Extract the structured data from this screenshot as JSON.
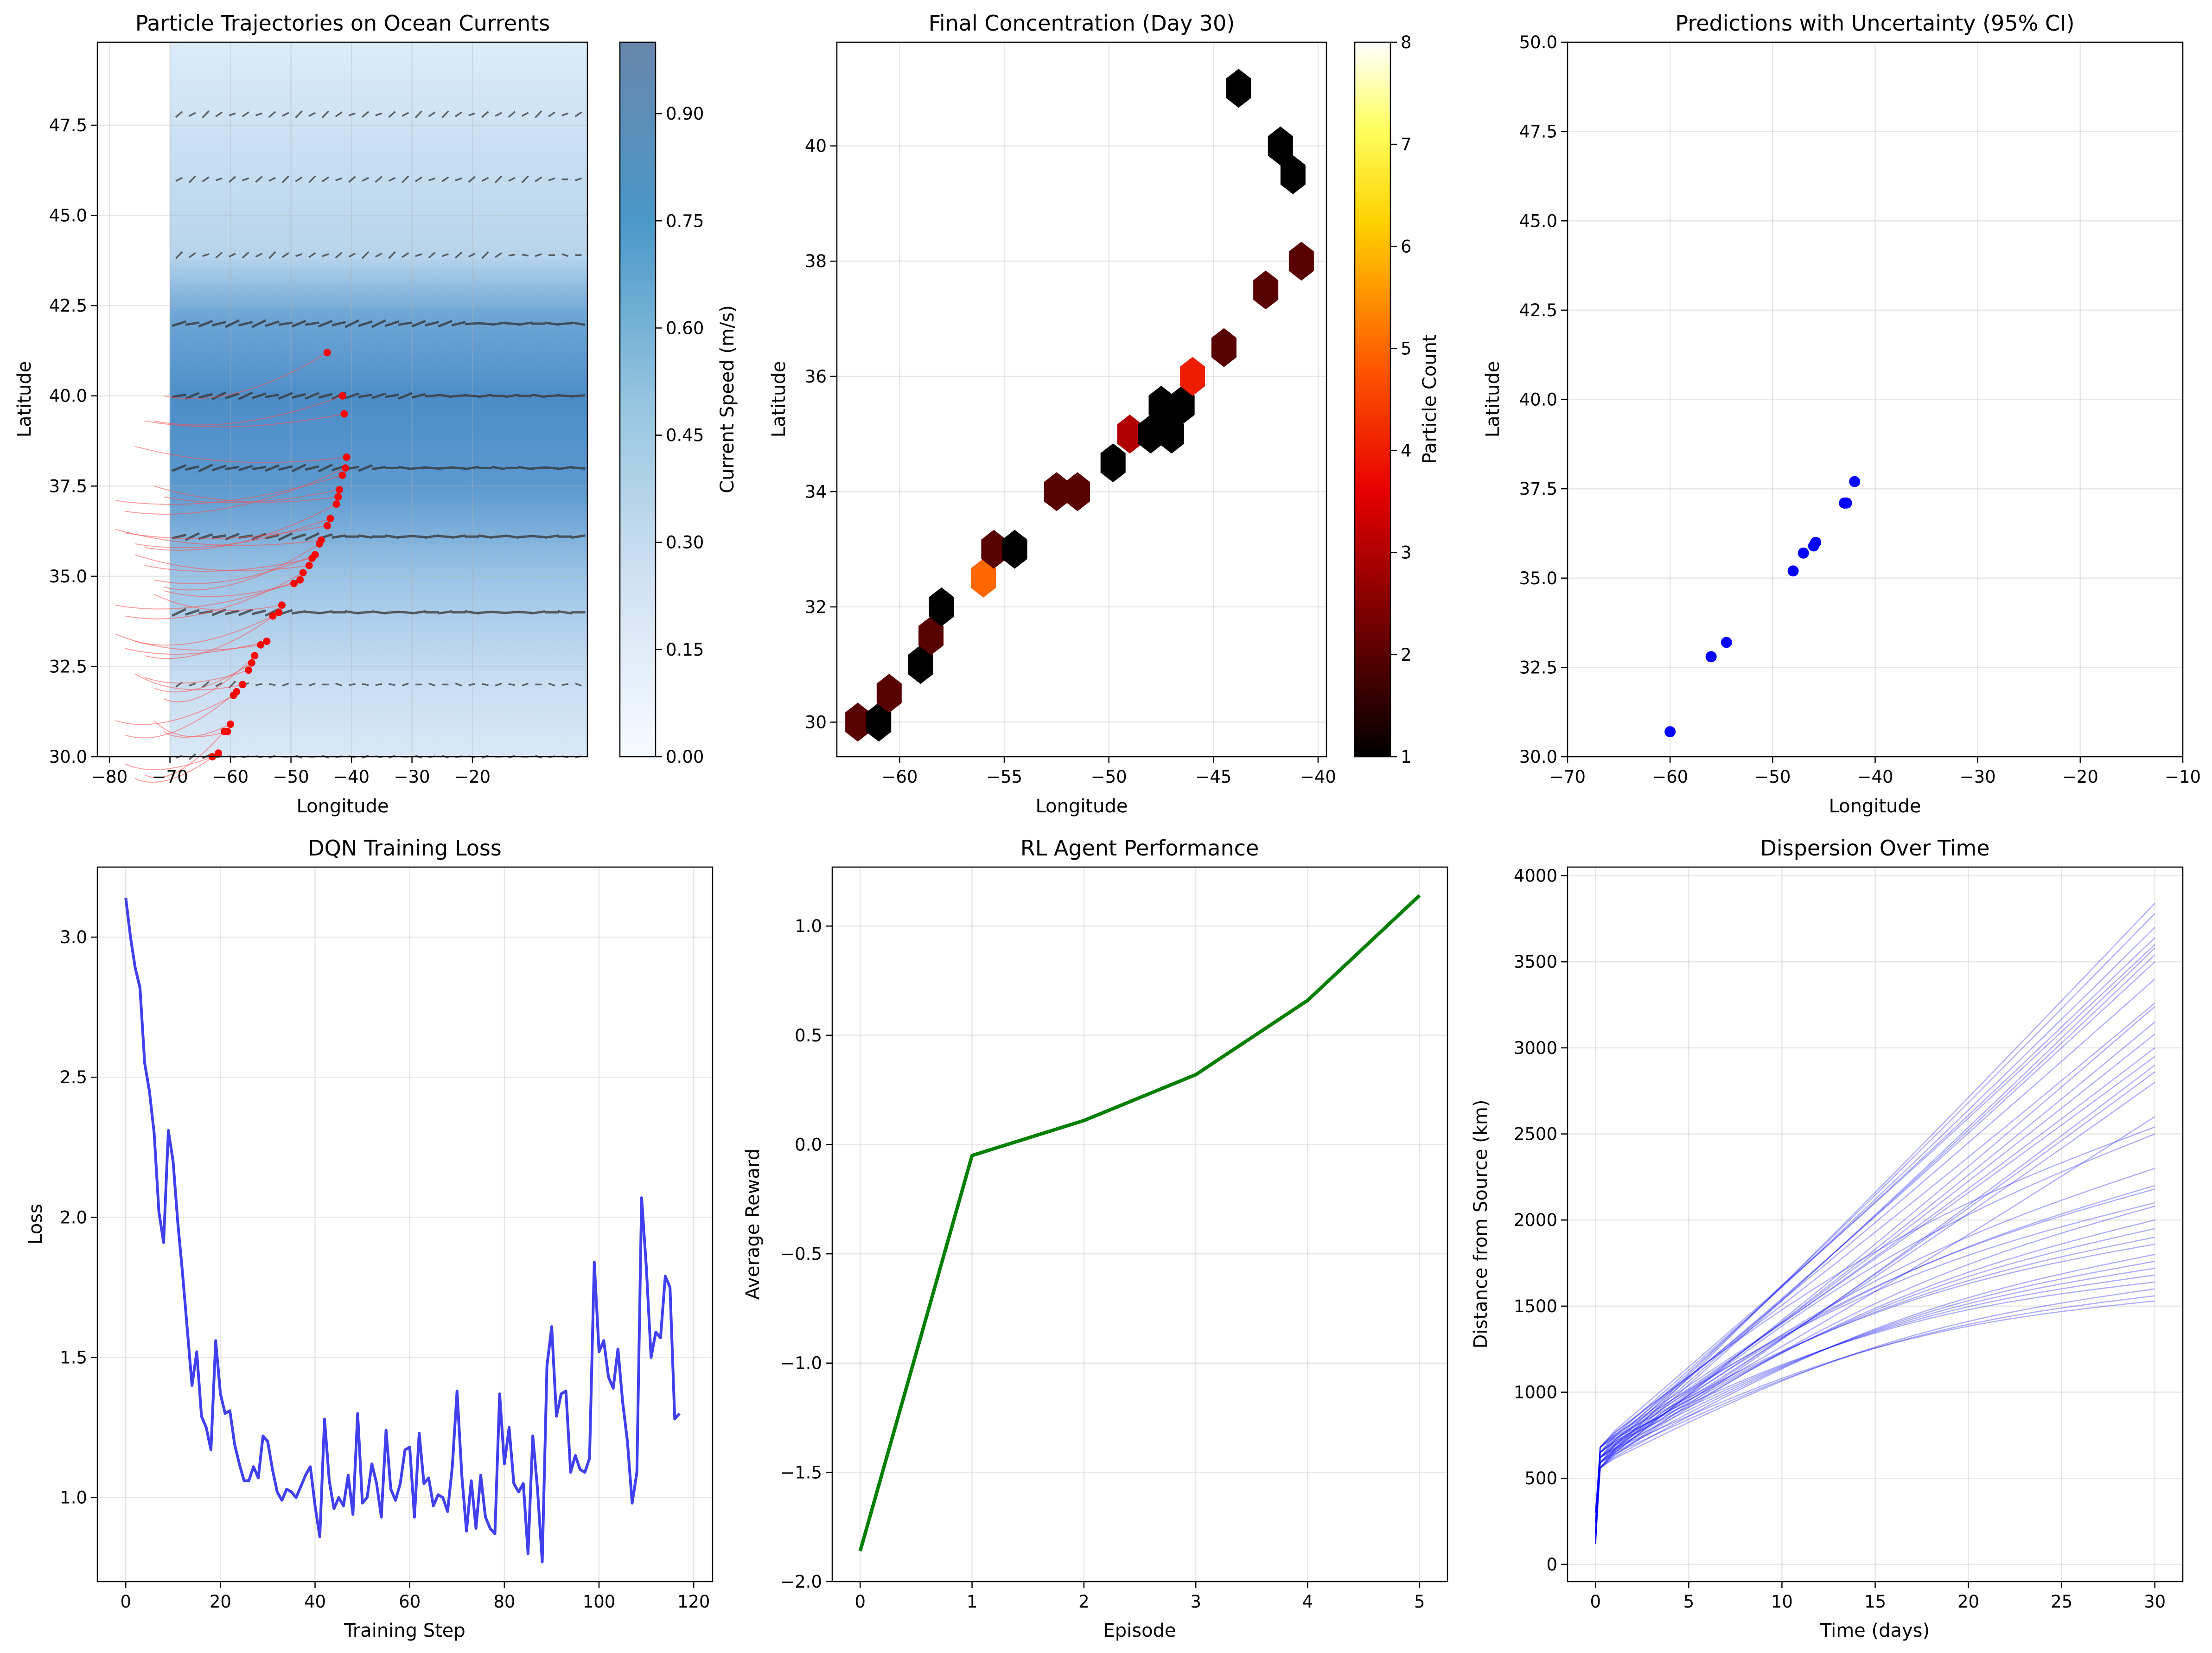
{
  "chart_data": [
    {
      "id": "trajectories",
      "type": "line",
      "title": "Particle Trajectories on Ocean Currents",
      "xlabel": "Longitude",
      "ylabel": "Latitude",
      "xlim": [
        -82,
        -1
      ],
      "ylim": [
        30,
        49.8
      ],
      "xticks": [
        -80,
        -70,
        -60,
        -50,
        -40,
        -30,
        -20
      ],
      "yticks": [
        30.0,
        32.5,
        35.0,
        37.5,
        40.0,
        42.5,
        45.0,
        47.5
      ],
      "grid": true,
      "field_xrange": [
        -70,
        -1
      ],
      "colorbar": {
        "label": "Current Speed (m/s)",
        "range": [
          0,
          1.0
        ],
        "ticks": [
          0.0,
          0.15,
          0.3,
          0.45,
          0.6,
          0.75,
          0.9
        ],
        "colormap": "Blues"
      },
      "quiver_rows_lat": [
        47.8,
        46.0,
        43.9,
        42.0,
        40.0,
        38.0,
        36.1,
        34.0,
        32.0,
        30.0
      ],
      "final_positions": [
        [
          -44.0,
          41.2
        ],
        [
          -41.5,
          40.0
        ],
        [
          -41.2,
          39.5
        ],
        [
          -40.8,
          38.3
        ],
        [
          -41.0,
          38.0
        ],
        [
          -41.5,
          37.8
        ],
        [
          -42.0,
          37.4
        ],
        [
          -42.2,
          37.2
        ],
        [
          -42.5,
          37.0
        ],
        [
          -43.5,
          36.6
        ],
        [
          -44.0,
          36.4
        ],
        [
          -45.0,
          36.0
        ],
        [
          -45.3,
          35.9
        ],
        [
          -46.0,
          35.6
        ],
        [
          -46.5,
          35.5
        ],
        [
          -47.0,
          35.3
        ],
        [
          -48.0,
          35.1
        ],
        [
          -48.5,
          34.9
        ],
        [
          -49.5,
          34.8
        ],
        [
          -51.5,
          34.2
        ],
        [
          -52.0,
          34.0
        ],
        [
          -53.0,
          33.9
        ],
        [
          -54.0,
          33.2
        ],
        [
          -55.0,
          33.1
        ],
        [
          -56.0,
          32.8
        ],
        [
          -56.5,
          32.6
        ],
        [
          -57.0,
          32.4
        ],
        [
          -58.0,
          32.0
        ],
        [
          -59.0,
          31.8
        ],
        [
          -59.5,
          31.7
        ],
        [
          -60.0,
          30.9
        ],
        [
          -60.5,
          30.7
        ],
        [
          -61.0,
          30.7
        ],
        [
          -62.0,
          30.1
        ],
        [
          -63.0,
          30.0
        ]
      ],
      "colors": {
        "trajectory": "#ff4d4d",
        "final": "#ff0000",
        "arrow": "#333333"
      }
    },
    {
      "id": "concentration",
      "type": "heatmap",
      "title": "Final Concentration (Day 30)",
      "xlabel": "Longitude",
      "ylabel": "Latitude",
      "xlim": [
        -63,
        -39.6
      ],
      "ylim": [
        29.4,
        41.8
      ],
      "xticks": [
        -60,
        -55,
        -50,
        -45,
        -40
      ],
      "yticks": [
        30,
        32,
        34,
        36,
        38,
        40
      ],
      "grid": true,
      "colorbar": {
        "label": "Particle Count",
        "range": [
          1,
          8
        ],
        "ticks": [
          1,
          2,
          3,
          4,
          5,
          6,
          7,
          8
        ],
        "colormap": "hot"
      },
      "cells": [
        {
          "lon": -62.0,
          "lat": 30.0,
          "count": 2
        },
        {
          "lon": -61.0,
          "lat": 30.0,
          "count": 1
        },
        {
          "lon": -60.5,
          "lat": 30.5,
          "count": 2
        },
        {
          "lon": -59.0,
          "lat": 31.0,
          "count": 1
        },
        {
          "lon": -58.5,
          "lat": 31.5,
          "count": 2
        },
        {
          "lon": -58.0,
          "lat": 32.0,
          "count": 1
        },
        {
          "lon": -56.0,
          "lat": 32.5,
          "count": 5
        },
        {
          "lon": -55.5,
          "lat": 33.0,
          "count": 2
        },
        {
          "lon": -54.5,
          "lat": 33.0,
          "count": 1
        },
        {
          "lon": -52.5,
          "lat": 34.0,
          "count": 2
        },
        {
          "lon": -51.5,
          "lat": 34.0,
          "count": 2
        },
        {
          "lon": -49.8,
          "lat": 34.5,
          "count": 1
        },
        {
          "lon": -49.0,
          "lat": 35.0,
          "count": 3
        },
        {
          "lon": -48.0,
          "lat": 35.0,
          "count": 1
        },
        {
          "lon": -47.0,
          "lat": 35.0,
          "count": 1
        },
        {
          "lon": -47.5,
          "lat": 35.5,
          "count": 1
        },
        {
          "lon": -46.5,
          "lat": 35.5,
          "count": 1
        },
        {
          "lon": -46.0,
          "lat": 36.0,
          "count": 4
        },
        {
          "lon": -44.5,
          "lat": 36.5,
          "count": 2
        },
        {
          "lon": -42.5,
          "lat": 37.5,
          "count": 2
        },
        {
          "lon": -40.8,
          "lat": 38.0,
          "count": 2
        },
        {
          "lon": -41.8,
          "lat": 40.0,
          "count": 1
        },
        {
          "lon": -41.2,
          "lat": 39.5,
          "count": 1
        },
        {
          "lon": -43.8,
          "lat": 41.0,
          "count": 1
        }
      ]
    },
    {
      "id": "predictions",
      "type": "scatter",
      "title": "Predictions with Uncertainty (95% CI)",
      "xlabel": "Longitude",
      "ylabel": "Latitude",
      "xlim": [
        -70,
        -10
      ],
      "ylim": [
        30,
        50
      ],
      "xticks": [
        -70,
        -60,
        -50,
        -40,
        -30,
        -20,
        -10
      ],
      "yticks": [
        30.0,
        32.5,
        35.0,
        37.5,
        40.0,
        42.5,
        45.0,
        47.5,
        50.0
      ],
      "grid": true,
      "points": [
        [
          -60.0,
          30.7
        ],
        [
          -56.0,
          32.8
        ],
        [
          -54.5,
          33.2
        ],
        [
          -48.0,
          35.2
        ],
        [
          -47.0,
          35.7
        ],
        [
          -46.0,
          35.9
        ],
        [
          -45.8,
          36.0
        ],
        [
          -43.0,
          37.1
        ],
        [
          -42.8,
          37.1
        ],
        [
          -42.0,
          37.7
        ]
      ],
      "colors": {
        "point": "#0000ff"
      }
    },
    {
      "id": "dqn_loss",
      "type": "line",
      "title": "DQN Training Loss",
      "xlabel": "Training Step",
      "ylabel": "Loss",
      "xlim": [
        -6,
        124
      ],
      "ylim": [
        0.7,
        3.25
      ],
      "xticks": [
        0,
        20,
        40,
        60,
        80,
        100,
        120
      ],
      "yticks": [
        1.0,
        1.5,
        2.0,
        2.5,
        3.0
      ],
      "grid": true,
      "y": [
        3.14,
        3.0,
        2.89,
        2.82,
        2.55,
        2.45,
        2.3,
        2.02,
        1.91,
        2.31,
        2.2,
        1.98,
        1.8,
        1.6,
        1.4,
        1.52,
        1.29,
        1.25,
        1.17,
        1.56,
        1.37,
        1.3,
        1.31,
        1.19,
        1.12,
        1.06,
        1.06,
        1.11,
        1.07,
        1.22,
        1.2,
        1.1,
        1.02,
        0.99,
        1.03,
        1.02,
        1.0,
        1.04,
        1.08,
        1.11,
        0.97,
        0.86,
        1.28,
        1.06,
        0.96,
        1.0,
        0.97,
        1.08,
        0.94,
        1.3,
        0.98,
        1.0,
        1.12,
        1.05,
        0.93,
        1.24,
        1.03,
        0.99,
        1.05,
        1.17,
        1.18,
        0.93,
        1.23,
        1.05,
        1.07,
        0.97,
        1.01,
        1.0,
        0.95,
        1.11,
        1.38,
        1.08,
        0.88,
        1.06,
        0.89,
        1.08,
        0.93,
        0.89,
        0.87,
        1.37,
        1.12,
        1.25,
        1.05,
        1.02,
        1.05,
        0.8,
        1.22,
        1.03,
        0.77,
        1.47,
        1.61,
        1.29,
        1.37,
        1.38,
        1.09,
        1.15,
        1.1,
        1.09,
        1.14,
        1.84,
        1.52,
        1.56,
        1.43,
        1.39,
        1.53,
        1.34,
        1.2,
        0.98,
        1.09,
        2.07,
        1.82,
        1.5,
        1.59,
        1.57,
        1.79,
        1.75,
        1.28,
        1.3
      ]
    },
    {
      "id": "rl_perf",
      "type": "line",
      "title": "RL Agent Performance",
      "xlabel": "Episode",
      "ylabel": "Average Reward",
      "xlim": [
        -0.25,
        5.25
      ],
      "ylim": [
        -2.0,
        1.27
      ],
      "xticks": [
        0,
        1,
        2,
        3,
        4,
        5
      ],
      "yticks": [
        -2.0,
        -1.5,
        -1.0,
        -0.5,
        0.0,
        0.5,
        1.0
      ],
      "grid": true,
      "x": [
        0,
        1,
        2,
        3,
        4,
        5
      ],
      "y": [
        -1.86,
        -0.05,
        0.11,
        0.32,
        0.66,
        1.14
      ],
      "colors": {
        "line": "#007f00"
      }
    },
    {
      "id": "dispersion",
      "type": "line",
      "title": "Dispersion Over Time",
      "xlabel": "Time (days)",
      "ylabel": "Distance from Source (km)",
      "xlim": [
        -1.5,
        31.5
      ],
      "ylim": [
        -100,
        4050
      ],
      "xticks": [
        0,
        5,
        10,
        15,
        20,
        25,
        30
      ],
      "yticks": [
        0,
        500,
        1000,
        1500,
        2000,
        2500,
        3000,
        3500,
        4000
      ],
      "grid": true,
      "final_distances": [
        3840,
        3780,
        3700,
        3640,
        3600,
        3580,
        3540,
        3500,
        3400,
        3260,
        3240,
        3150,
        3080,
        3000,
        2950,
        2900,
        2860,
        2800,
        2600,
        2540,
        2500,
        2300,
        2200,
        2180,
        2100,
        2080,
        2000,
        1950,
        1900,
        1860,
        1800,
        1760,
        1720,
        1680,
        1640,
        1600,
        1560,
        1530
      ],
      "colors": {
        "line": "#0000ff"
      }
    }
  ]
}
